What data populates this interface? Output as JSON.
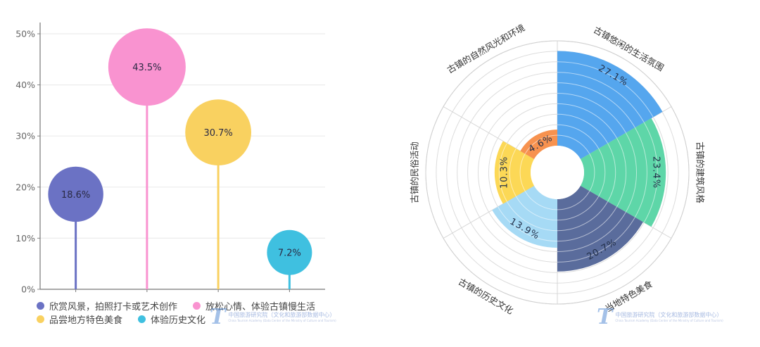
{
  "chart_data": [
    {
      "type": "scatter",
      "subtype": "lollipop-bubble",
      "title": "",
      "xlabel": "",
      "ylabel": "",
      "ylim": [
        0,
        50
      ],
      "yticks": [
        "0%",
        "10%",
        "20%",
        "30%",
        "40%",
        "50%"
      ],
      "grid": true,
      "legend_position": "bottom",
      "categories": [
        "欣赏风景，拍照打卡或艺术创作",
        "放松心情、体验古镇慢生活",
        "品尝地方特色美食",
        "体验历史文化"
      ],
      "values": [
        18.6,
        43.5,
        30.7,
        7.2
      ],
      "labels": [
        "18.6%",
        "43.5%",
        "30.7%",
        "7.2%"
      ],
      "colors": [
        "#6b72c4",
        "#f993d0",
        "#f9d160",
        "#3fc0e0"
      ]
    },
    {
      "type": "bar",
      "subtype": "polar-rose",
      "title": "",
      "categories": [
        "古镇悠闲的生活氛围",
        "古镇的建筑风格",
        "当地特色美食",
        "古镇的历史文化",
        "古镇的民俗活动",
        "古镇的自然风光和环境"
      ],
      "values": [
        27.1,
        23.4,
        20.7,
        13.9,
        10.3,
        4.6
      ],
      "labels": [
        "27.1%",
        "23.4%",
        "20.7%",
        "13.9%",
        "10.3%",
        "4.6%"
      ],
      "colors": [
        "#55a6ee",
        "#5ed6a8",
        "#5a6c9c",
        "#a6daf5",
        "#fcd856",
        "#f7924f"
      ],
      "rlim": [
        0,
        30
      ],
      "grid": true
    }
  ],
  "legend": {
    "rows": [
      [
        {
          "label": "欣赏风景，拍照打卡或艺术创作",
          "color": "#6b72c4"
        },
        {
          "label": "放松心情、体验古镇慢生活",
          "color": "#f993d0"
        }
      ],
      [
        {
          "label": "品尝地方特色美食",
          "color": "#f9d160"
        },
        {
          "label": "体验历史文化",
          "color": "#3fc0e0"
        }
      ]
    ]
  },
  "watermark": {
    "logo": "T",
    "text_cn": "中国旅游研究院（文化和旅游部数据中心）",
    "text_en": "China Tourism Academy (Data Center of the Ministry of Culture and Tourism)"
  }
}
